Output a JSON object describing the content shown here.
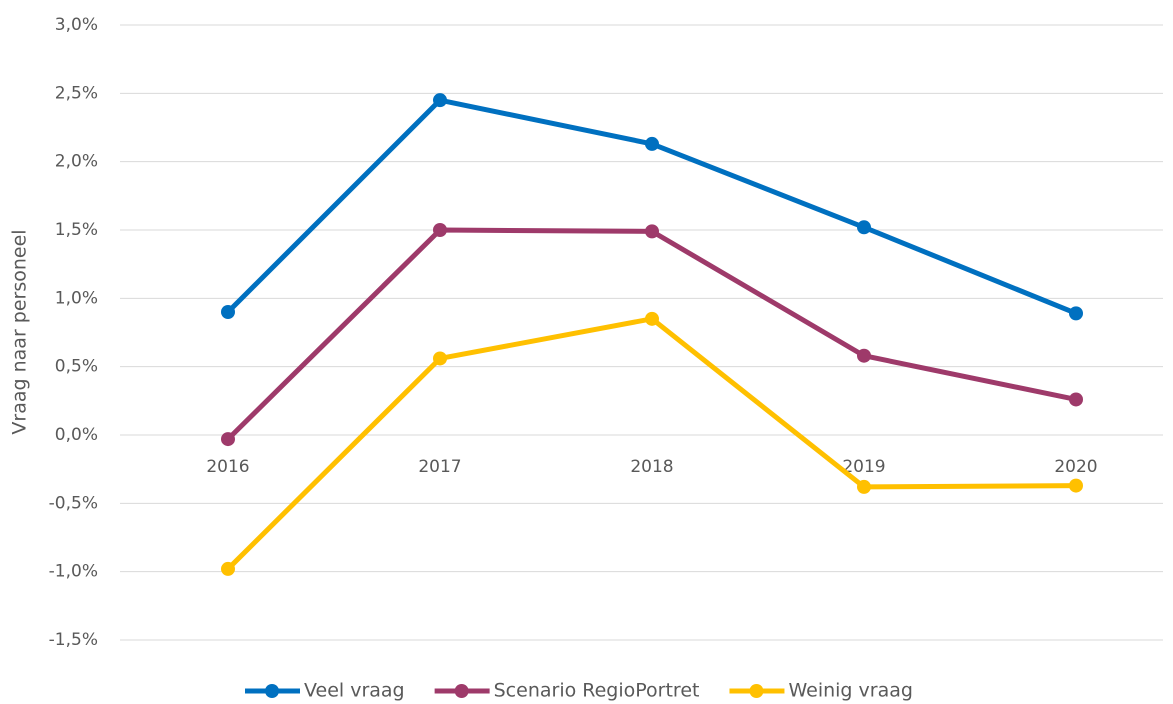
{
  "chart_data": {
    "type": "line",
    "y_label": "Vraag naar personeel",
    "categories": [
      "2016",
      "2017",
      "2018",
      "2019",
      "2020"
    ],
    "series": [
      {
        "name": "Veel vraag",
        "color": "#0070c0",
        "values": [
          0.9,
          2.45,
          2.13,
          1.52,
          0.89
        ]
      },
      {
        "name": "Scenario RegioPortret",
        "color": "#9e3a6a",
        "values": [
          -0.03,
          1.5,
          1.49,
          0.58,
          0.26
        ]
      },
      {
        "name": "Weinig vraag",
        "color": "#ffc000",
        "values": [
          -0.98,
          0.56,
          0.85,
          -0.38,
          -0.37
        ]
      }
    ],
    "ylim": [
      -1.5,
      3.0
    ],
    "yticks": [
      {
        "value": -1.5,
        "label": "-1,5%"
      },
      {
        "value": -1.0,
        "label": "-1,0%"
      },
      {
        "value": -0.5,
        "label": "-0,5%"
      },
      {
        "value": 0.0,
        "label": "0,0%"
      },
      {
        "value": 0.5,
        "label": "0,5%"
      },
      {
        "value": 1.0,
        "label": "1,0%"
      },
      {
        "value": 1.5,
        "label": "1,5%"
      },
      {
        "value": 2.0,
        "label": "2,0%"
      },
      {
        "value": 2.5,
        "label": "2,5%"
      },
      {
        "value": 3.0,
        "label": "3,0%"
      }
    ],
    "grid": true,
    "legend": "bottom"
  }
}
